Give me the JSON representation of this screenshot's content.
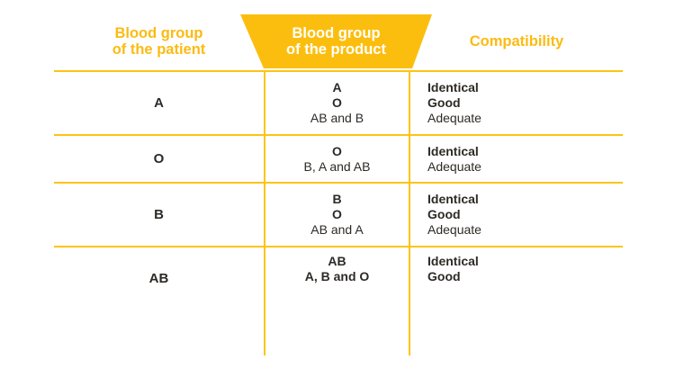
{
  "table": {
    "headers": {
      "patient": "Blood group\nof the patient",
      "product": "Blood group\nof the product",
      "compatibility": "Compatibility"
    },
    "rows": [
      {
        "patient": "A",
        "product": [
          {
            "text": "A",
            "bold": true
          },
          {
            "text": "O",
            "bold": true
          },
          {
            "text": "AB and B",
            "bold": false
          }
        ],
        "compatibility": [
          {
            "text": "Identical",
            "bold": true
          },
          {
            "text": "Good",
            "bold": true
          },
          {
            "text": "Adequate",
            "bold": false
          }
        ]
      },
      {
        "patient": "O",
        "product": [
          {
            "text": "O",
            "bold": true
          },
          {
            "text": "B, A and AB",
            "bold": false
          }
        ],
        "compatibility": [
          {
            "text": "Identical",
            "bold": true
          },
          {
            "text": "Adequate",
            "bold": false
          }
        ]
      },
      {
        "patient": "B",
        "product": [
          {
            "text": "B",
            "bold": true
          },
          {
            "text": "O",
            "bold": true
          },
          {
            "text": "AB and A",
            "bold": false
          }
        ],
        "compatibility": [
          {
            "text": "Identical",
            "bold": true
          },
          {
            "text": "Good",
            "bold": true
          },
          {
            "text": "Adequate",
            "bold": false
          }
        ]
      },
      {
        "patient": "AB",
        "product": [
          {
            "text": "AB",
            "bold": true
          },
          {
            "text": "A, B and O",
            "bold": true
          }
        ],
        "compatibility": [
          {
            "text": "Identical",
            "bold": true
          },
          {
            "text": "Good",
            "bold": true
          }
        ]
      }
    ]
  },
  "colors": {
    "accent_yellow": "#fcbe0e",
    "line_yellow": "#fdc415",
    "header_text_yellow": "#fcbb12",
    "product_header_text": "#ffffff",
    "body_text": "#2d2a26"
  }
}
